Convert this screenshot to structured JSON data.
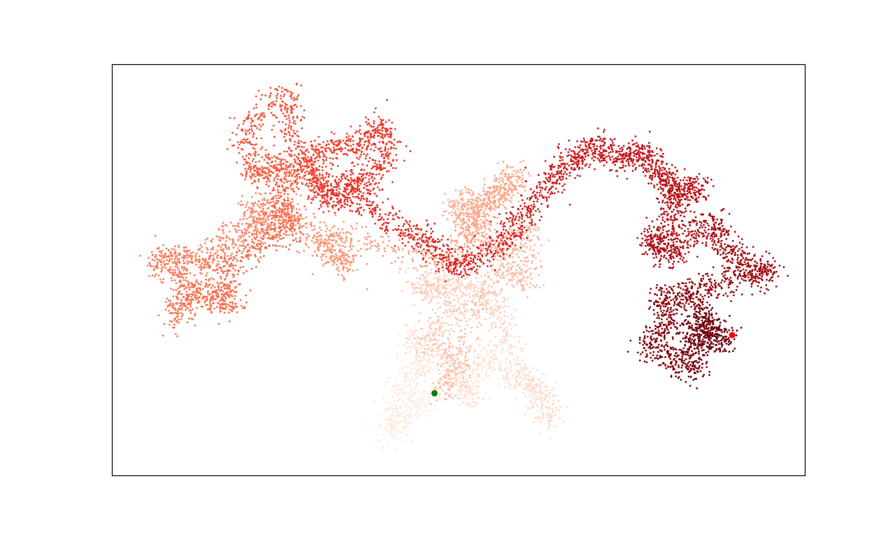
{
  "chart_data": {
    "type": "scatter",
    "description_kind": "random-walk",
    "colormap": "Reds",
    "colormap_stops": [
      "#fff5f0",
      "#fee0d2",
      "#fcbba1",
      "#fc9272",
      "#fb6a4a",
      "#ef3b2c",
      "#cb181d",
      "#a50f15",
      "#67000d"
    ],
    "axes_visible": false,
    "frame_visible": true,
    "grid": false,
    "xlim": [
      0,
      100
    ],
    "ylim": [
      0,
      60
    ],
    "walk_path": [
      [
        46.5,
        12.0
      ],
      [
        43.0,
        10.0
      ],
      [
        40.0,
        6.0
      ],
      [
        41.5,
        12.5
      ],
      [
        45.0,
        16.0
      ],
      [
        43.5,
        20.5
      ],
      [
        49.0,
        14.5
      ],
      [
        52.0,
        11.0
      ],
      [
        53.0,
        18.0
      ],
      [
        58.0,
        14.0
      ],
      [
        62.0,
        12.5
      ],
      [
        63.0,
        8.0
      ],
      [
        57.0,
        20.0
      ],
      [
        55.0,
        25.0
      ],
      [
        51.5,
        28.0
      ],
      [
        47.0,
        27.5
      ],
      [
        44.0,
        28.5
      ],
      [
        49.5,
        24.0
      ],
      [
        45.0,
        20.0
      ],
      [
        50.5,
        17.0
      ],
      [
        48.0,
        12.0
      ],
      [
        51.0,
        22.0
      ],
      [
        56.0,
        31.0
      ],
      [
        59.5,
        28.0
      ],
      [
        60.0,
        36.0
      ],
      [
        56.0,
        33.0
      ],
      [
        52.0,
        35.5
      ],
      [
        49.5,
        39.5
      ],
      [
        53.0,
        40.0
      ],
      [
        56.0,
        41.5
      ],
      [
        58.5,
        44.0
      ],
      [
        55.0,
        39.5
      ],
      [
        52.0,
        37.0
      ],
      [
        50.0,
        31.5
      ],
      [
        42.0,
        33.0
      ],
      [
        31.0,
        35.5
      ],
      [
        34.0,
        30.5
      ],
      [
        30.5,
        33.0
      ],
      [
        26.0,
        38.5
      ],
      [
        24.0,
        37.0
      ],
      [
        20.0,
        39.0
      ],
      [
        22.0,
        35.5
      ],
      [
        16.5,
        35.0
      ],
      [
        14.0,
        31.0
      ],
      [
        10.0,
        32.0
      ],
      [
        6.0,
        31.5
      ],
      [
        10.5,
        28.0
      ],
      [
        9.0,
        23.0
      ],
      [
        12.0,
        27.0
      ],
      [
        15.0,
        26.0
      ],
      [
        17.5,
        25.0
      ],
      [
        15.5,
        30.0
      ],
      [
        21.0,
        33.5
      ],
      [
        26.0,
        36.0
      ],
      [
        23.5,
        40.0
      ],
      [
        26.0,
        44.0
      ],
      [
        23.0,
        45.5
      ],
      [
        20.5,
        44.0
      ],
      [
        19.0,
        50.5
      ],
      [
        25.0,
        56.0
      ],
      [
        26.0,
        50.0
      ],
      [
        28.0,
        44.5
      ],
      [
        31.0,
        40.5
      ],
      [
        28.0,
        46.0
      ],
      [
        32.0,
        48.0
      ],
      [
        36.0,
        48.0
      ],
      [
        38.5,
        51.5
      ],
      [
        40.0,
        47.0
      ],
      [
        36.5,
        42.5
      ],
      [
        34.0,
        43.0
      ],
      [
        31.0,
        41.0
      ],
      [
        36.0,
        40.0
      ],
      [
        42.0,
        36.0
      ],
      [
        46.0,
        34.0
      ],
      [
        49.0,
        30.5
      ],
      [
        52.0,
        31.0
      ],
      [
        57.0,
        34.5
      ],
      [
        59.0,
        38.0
      ],
      [
        63.0,
        42.0
      ],
      [
        65.0,
        45.5
      ],
      [
        68.0,
        47.0
      ],
      [
        70.5,
        48.0
      ],
      [
        73.5,
        46.0
      ],
      [
        76.0,
        47.5
      ],
      [
        78.5,
        45.0
      ],
      [
        80.0,
        43.0
      ],
      [
        81.5,
        41.5
      ],
      [
        84.5,
        42.5
      ],
      [
        81.0,
        39.5
      ],
      [
        80.5,
        35.0
      ],
      [
        77.5,
        34.0
      ],
      [
        80.0,
        32.0
      ],
      [
        83.5,
        35.0
      ],
      [
        87.0,
        37.0
      ],
      [
        88.5,
        32.5
      ],
      [
        92.0,
        31.0
      ],
      [
        95.0,
        29.5
      ],
      [
        90.0,
        28.5
      ],
      [
        85.0,
        27.0
      ],
      [
        83.0,
        26.0
      ],
      [
        79.0,
        26.0
      ],
      [
        81.0,
        22.0
      ],
      [
        77.0,
        19.0
      ],
      [
        81.0,
        17.0
      ],
      [
        84.0,
        15.0
      ],
      [
        83.5,
        20.5
      ],
      [
        87.5,
        21.0
      ],
      [
        84.5,
        24.0
      ],
      [
        86.0,
        19.0
      ],
      [
        89.5,
        20.5
      ]
    ],
    "start_point": {
      "x": 46.5,
      "y": 12.0,
      "color": "#008000"
    },
    "end_point": {
      "x": 89.5,
      "y": 20.5,
      "color": "#ff0000"
    }
  }
}
